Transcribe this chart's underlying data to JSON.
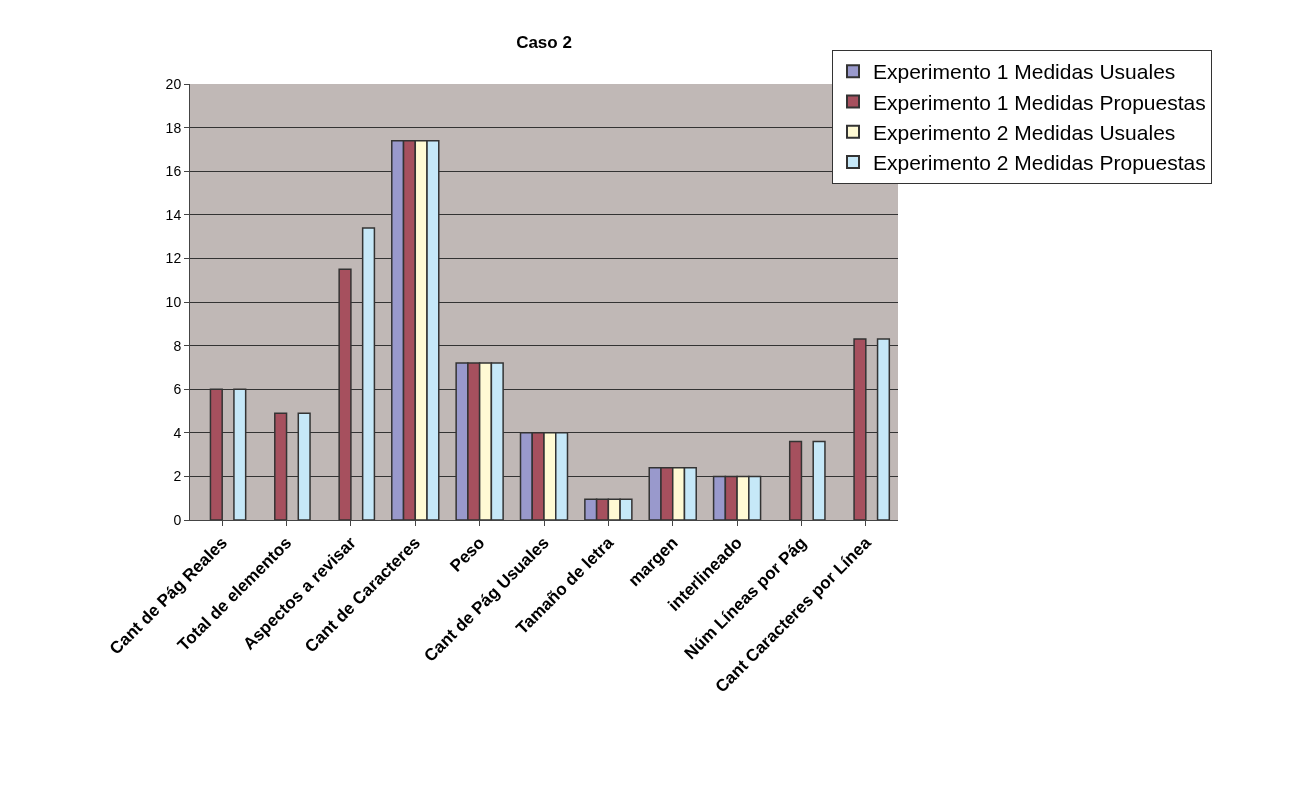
{
  "chart_data": {
    "type": "bar",
    "title": "Caso 2",
    "categories": [
      "Cant de Pág Reales",
      "Total de elementos",
      "Aspectos a revisar",
      "Cant de Caracteres",
      "Peso",
      "Cant de Pág Usuales",
      "Tamaño de letra",
      "margen",
      "interlineado",
      "Núm Líneas por Pág",
      "Cant Caracteres por Línea"
    ],
    "series": [
      {
        "name": "Experimento 1 Medidas Usuales",
        "color": "#9999cc",
        "values": [
          null,
          null,
          null,
          17.4,
          7.2,
          4.0,
          0.95,
          2.4,
          2.0,
          null,
          null
        ]
      },
      {
        "name": "Experimento 1 Medidas Propuestas",
        "color": "#a6505e",
        "values": [
          6.0,
          4.9,
          11.5,
          17.4,
          7.2,
          4.0,
          0.95,
          2.4,
          2.0,
          3.6,
          8.3
        ]
      },
      {
        "name": "Experimento 2 Medidas Usuales",
        "color": "#fffad4",
        "values": [
          null,
          null,
          null,
          17.4,
          7.2,
          4.0,
          0.95,
          2.4,
          2.0,
          null,
          null
        ]
      },
      {
        "name": "Experimento 2 Medidas Propuestas",
        "color": "#c6e8f8",
        "values": [
          6.0,
          4.9,
          13.4,
          17.4,
          7.2,
          4.0,
          0.95,
          2.4,
          2.0,
          3.6,
          8.3
        ]
      }
    ],
    "ylim": [
      0,
      20
    ],
    "yticks": [
      0,
      2,
      4,
      6,
      8,
      10,
      12,
      14,
      16,
      18,
      20
    ],
    "grid": "y",
    "legend": "top right"
  }
}
